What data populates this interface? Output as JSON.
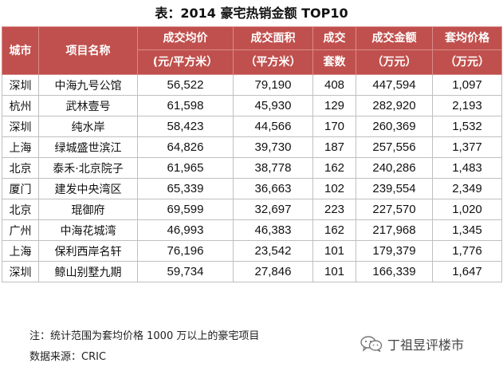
{
  "title": "表：2014 豪宅热销金额 TOP10",
  "headers": [
    {
      "line1": "城市",
      "line2": ""
    },
    {
      "line1": "项目名称",
      "line2": ""
    },
    {
      "line1": "成交均价",
      "line2": "(元/平方米）"
    },
    {
      "line1": "成交面积",
      "line2": "（平方米）"
    },
    {
      "line1": "成交",
      "line2": "套数"
    },
    {
      "line1": "成交金额",
      "line2": "（万元）"
    },
    {
      "line1": "套均价格",
      "line2": "（万元）"
    }
  ],
  "rows": [
    [
      "深圳",
      "中海九号公馆",
      "56,522",
      "79,190",
      "408",
      "447,594",
      "1,097"
    ],
    [
      "杭州",
      "武林壹号",
      "61,598",
      "45,930",
      "129",
      "282,920",
      "2,193"
    ],
    [
      "深圳",
      "纯水岸",
      "58,423",
      "44,566",
      "170",
      "260,369",
      "1,532"
    ],
    [
      "上海",
      "绿城盛世滨江",
      "64,826",
      "39,730",
      "187",
      "257,556",
      "1,377"
    ],
    [
      "北京",
      "泰禾·北京院子",
      "61,965",
      "38,778",
      "162",
      "240,286",
      "1,483"
    ],
    [
      "厦门",
      "建发中央湾区",
      "65,339",
      "36,663",
      "102",
      "239,554",
      "2,349"
    ],
    [
      "北京",
      "琨御府",
      "69,599",
      "32,697",
      "223",
      "227,570",
      "1,020"
    ],
    [
      "广州",
      "中海花城湾",
      "46,993",
      "46,383",
      "162",
      "217,968",
      "1,345"
    ],
    [
      "上海",
      "保利西岸名轩",
      "76,196",
      "23,542",
      "101",
      "179,379",
      "1,776"
    ],
    [
      "深圳",
      "鲸山别墅九期",
      "59,734",
      "27,846",
      "101",
      "166,339",
      "1,647"
    ]
  ],
  "notes": {
    "note": "注：统计范围为套均价格 1000 万以上的豪宅项目",
    "source": "数据来源：CRIC"
  },
  "watermark": {
    "icon": "wechat-icon",
    "text": "丁祖昱评楼市"
  },
  "colors": {
    "header_bg": "#c0504d",
    "header_text": "#ffffff",
    "border": "#bfbfbf"
  }
}
